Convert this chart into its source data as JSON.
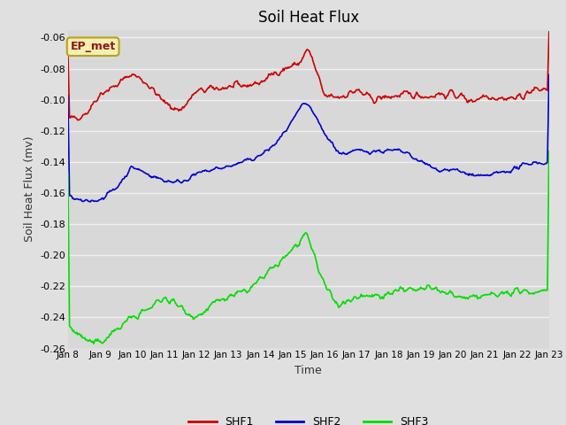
{
  "title": "Soil Heat Flux",
  "xlabel": "Time",
  "ylabel": "Soil Heat Flux (mv)",
  "ylim": [
    -0.26,
    -0.055
  ],
  "yticks": [
    -0.26,
    -0.24,
    -0.22,
    -0.2,
    -0.18,
    -0.16,
    -0.14,
    -0.12,
    -0.1,
    -0.08,
    -0.06
  ],
  "xlim": [
    0,
    15
  ],
  "fig_facecolor": "#e0e0e0",
  "plot_bg_color": "#d8d8d8",
  "grid_color": "#f0f0f0",
  "annotation_text": "EP_met",
  "annotation_fg": "#8b1a1a",
  "annotation_bg": "#f5f0b0",
  "annotation_border": "#b8a020",
  "series": {
    "SHF1": {
      "color": "#cc0000",
      "linewidth": 1.2
    },
    "SHF2": {
      "color": "#0000cc",
      "linewidth": 1.2
    },
    "SHF3": {
      "color": "#00dd00",
      "linewidth": 1.2
    }
  },
  "xtick_labels": [
    "Jan 8",
    "Jan 9",
    "Jan 10",
    "Jan 11",
    "Jan 12",
    "Jan 13",
    "Jan 14",
    "Jan 15",
    "Jan 16",
    "Jan 17",
    "Jan 18",
    "Jan 19",
    "Jan 20",
    "Jan 21",
    "Jan 22",
    "Jan 23"
  ],
  "xtick_positions": [
    0,
    1,
    2,
    3,
    4,
    5,
    6,
    7,
    8,
    9,
    10,
    11,
    12,
    13,
    14,
    15
  ],
  "shf1_x": [
    0,
    0.3,
    0.6,
    1.0,
    1.5,
    2.0,
    2.5,
    3.0,
    3.5,
    4.0,
    4.5,
    5.0,
    5.5,
    6.0,
    6.3,
    6.5,
    6.8,
    7.0,
    7.2,
    7.5,
    8.0,
    8.5,
    9.0,
    9.5,
    10.0,
    10.5,
    11.0,
    11.3,
    11.5,
    11.8,
    12.0,
    12.3,
    12.5,
    12.8,
    13.0,
    13.5,
    14.0,
    14.5,
    15.0
  ],
  "shf1_y": [
    -0.113,
    -0.111,
    -0.108,
    -0.096,
    -0.091,
    -0.083,
    -0.09,
    -0.102,
    -0.107,
    -0.095,
    -0.093,
    -0.092,
    -0.091,
    -0.089,
    -0.085,
    -0.082,
    -0.08,
    -0.078,
    -0.077,
    -0.067,
    -0.098,
    -0.098,
    -0.094,
    -0.1,
    -0.098,
    -0.097,
    -0.097,
    -0.098,
    -0.096,
    -0.097,
    -0.096,
    -0.098,
    -0.101,
    -0.099,
    -0.097,
    -0.099,
    -0.099,
    -0.094,
    -0.093
  ],
  "shf2_x": [
    0,
    0.5,
    1.0,
    1.5,
    2.0,
    2.5,
    3.0,
    3.5,
    4.0,
    4.5,
    5.0,
    5.5,
    6.0,
    6.5,
    7.0,
    7.3,
    7.5,
    8.0,
    8.5,
    9.0,
    9.5,
    10.0,
    10.3,
    10.5,
    11.0,
    11.5,
    12.0,
    12.5,
    13.0,
    13.2,
    13.5,
    14.0,
    14.5,
    15.0
  ],
  "shf2_y": [
    -0.162,
    -0.166,
    -0.164,
    -0.157,
    -0.143,
    -0.148,
    -0.152,
    -0.153,
    -0.148,
    -0.145,
    -0.143,
    -0.14,
    -0.136,
    -0.128,
    -0.114,
    -0.104,
    -0.103,
    -0.122,
    -0.135,
    -0.133,
    -0.133,
    -0.133,
    -0.133,
    -0.134,
    -0.14,
    -0.145,
    -0.145,
    -0.148,
    -0.15,
    -0.148,
    -0.147,
    -0.144,
    -0.14,
    -0.141
  ],
  "shf3_x": [
    0,
    0.3,
    0.5,
    0.8,
    1.0,
    1.5,
    2.0,
    2.5,
    3.0,
    3.5,
    4.0,
    4.5,
    5.0,
    5.5,
    6.0,
    6.5,
    7.0,
    7.3,
    7.5,
    8.0,
    8.3,
    8.5,
    9.0,
    9.3,
    9.5,
    10.0,
    10.3,
    10.5,
    11.0,
    11.5,
    12.0,
    12.5,
    13.0,
    13.5,
    14.0,
    14.5,
    15.0
  ],
  "shf3_y": [
    -0.245,
    -0.25,
    -0.254,
    -0.257,
    -0.256,
    -0.248,
    -0.24,
    -0.235,
    -0.227,
    -0.233,
    -0.24,
    -0.232,
    -0.227,
    -0.224,
    -0.216,
    -0.207,
    -0.196,
    -0.19,
    -0.189,
    -0.22,
    -0.228,
    -0.232,
    -0.227,
    -0.225,
    -0.226,
    -0.225,
    -0.222,
    -0.223,
    -0.222,
    -0.222,
    -0.226,
    -0.228,
    -0.226,
    -0.225,
    -0.224,
    -0.223,
    -0.222
  ]
}
